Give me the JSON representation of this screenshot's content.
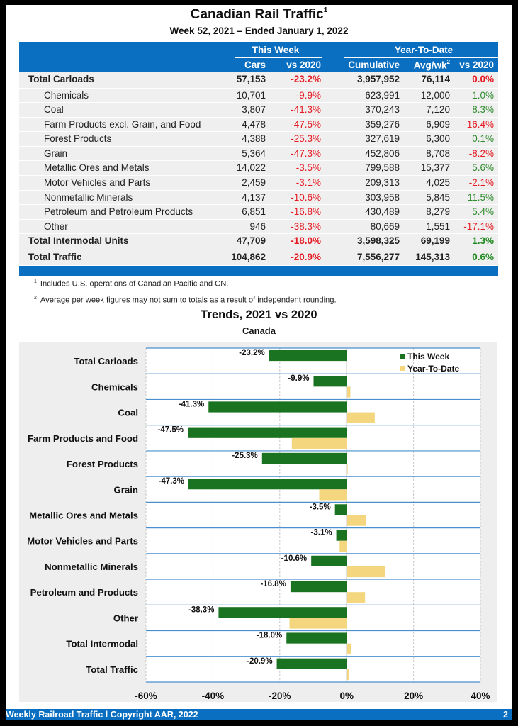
{
  "header": {
    "title": "Canadian Rail Traffic",
    "title_footnote": "1",
    "subtitle": "Week 52, 2021 – Ended January 1, 2022"
  },
  "table": {
    "group_this_week": "This Week",
    "group_ytd": "Year-To-Date",
    "columns": [
      "Cars",
      "vs 2020",
      "Cumulative",
      "Avg/wk",
      "vs 2020"
    ],
    "avg_footnote": "2",
    "rows": [
      {
        "label": "Total Carloads",
        "bold": true,
        "cars": "57,153",
        "vs_week": "-23.2%",
        "cumulative": "3,957,952",
        "avg_wk": "76,114",
        "vs_ytd": "0.0%",
        "ytd_sign": "neg"
      },
      {
        "label": "Chemicals",
        "bold": false,
        "cars": "10,701",
        "vs_week": "-9.9%",
        "cumulative": "623,991",
        "avg_wk": "12,000",
        "vs_ytd": "1.0%",
        "ytd_sign": "pos"
      },
      {
        "label": "Coal",
        "bold": false,
        "cars": "3,807",
        "vs_week": "-41.3%",
        "cumulative": "370,243",
        "avg_wk": "7,120",
        "vs_ytd": "8.3%",
        "ytd_sign": "pos"
      },
      {
        "label": "Farm Products excl. Grain, and Food",
        "bold": false,
        "cars": "4,478",
        "vs_week": "-47.5%",
        "cumulative": "359,276",
        "avg_wk": "6,909",
        "vs_ytd": "-16.4%",
        "ytd_sign": "neg"
      },
      {
        "label": "Forest Products",
        "bold": false,
        "cars": "4,388",
        "vs_week": "-25.3%",
        "cumulative": "327,619",
        "avg_wk": "6,300",
        "vs_ytd": "0.1%",
        "ytd_sign": "pos"
      },
      {
        "label": "Grain",
        "bold": false,
        "cars": "5,364",
        "vs_week": "-47.3%",
        "cumulative": "452,806",
        "avg_wk": "8,708",
        "vs_ytd": "-8.2%",
        "ytd_sign": "neg"
      },
      {
        "label": "Metallic Ores and Metals",
        "bold": false,
        "cars": "14,022",
        "vs_week": "-3.5%",
        "cumulative": "799,588",
        "avg_wk": "15,377",
        "vs_ytd": "5.6%",
        "ytd_sign": "pos"
      },
      {
        "label": "Motor Vehicles and Parts",
        "bold": false,
        "cars": "2,459",
        "vs_week": "-3.1%",
        "cumulative": "209,313",
        "avg_wk": "4,025",
        "vs_ytd": "-2.1%",
        "ytd_sign": "neg"
      },
      {
        "label": "Nonmetallic Minerals",
        "bold": false,
        "cars": "4,137",
        "vs_week": "-10.6%",
        "cumulative": "303,958",
        "avg_wk": "5,845",
        "vs_ytd": "11.5%",
        "ytd_sign": "pos"
      },
      {
        "label": "Petroleum and Petroleum Products",
        "bold": false,
        "cars": "6,851",
        "vs_week": "-16.8%",
        "cumulative": "430,489",
        "avg_wk": "8,279",
        "vs_ytd": "5.4%",
        "ytd_sign": "pos"
      },
      {
        "label": "Other",
        "bold": false,
        "cars": "946",
        "vs_week": "-38.3%",
        "cumulative": "80,669",
        "avg_wk": "1,551",
        "vs_ytd": "-17.1%",
        "ytd_sign": "neg"
      },
      {
        "label": "Total Intermodal Units",
        "bold": true,
        "cars": "47,709",
        "vs_week": "-18.0%",
        "cumulative": "3,598,325",
        "avg_wk": "69,199",
        "vs_ytd": "1.3%",
        "ytd_sign": "pos"
      },
      {
        "label": "Total Traffic",
        "bold": true,
        "cars": "104,862",
        "vs_week": "-20.9%",
        "cumulative": "7,556,277",
        "avg_wk": "145,313",
        "vs_ytd": "0.6%",
        "ytd_sign": "pos"
      }
    ]
  },
  "notes": [
    {
      "mark": "1",
      "text": "Includes U.S. operations of Canadian Pacific and CN."
    },
    {
      "mark": "2",
      "text": "Average per week figures may not sum to totals as a result of independent rounding."
    }
  ],
  "chart_data": {
    "type": "bar",
    "orientation": "horizontal",
    "title": "Trends, 2021 vs 2020",
    "subtitle": "Canada",
    "categories": [
      "Total Carloads",
      "Chemicals",
      "Coal",
      "Farm Products and Food",
      "Forest Products",
      "Grain",
      "Metallic Ores and Metals",
      "Motor Vehicles and Parts",
      "Nonmetallic Minerals",
      "Petroleum and Products",
      "Other",
      "Total Intermodal",
      "Total Traffic"
    ],
    "series": [
      {
        "name": "This Week",
        "color": "#1a7320",
        "values": [
          -23.2,
          -9.9,
          -41.3,
          -47.5,
          -25.3,
          -47.3,
          -3.5,
          -3.1,
          -10.6,
          -16.8,
          -38.3,
          -18.0,
          -20.9
        ],
        "labels": [
          "-23.2%",
          "-9.9%",
          "-41.3%",
          "-47.5%",
          "-25.3%",
          "-47.3%",
          "-3.5%",
          "-3.1%",
          "-10.6%",
          "-16.8%",
          "-38.3%",
          "-18.0%",
          "-20.9%"
        ]
      },
      {
        "name": "Year-To-Date",
        "color": "#f3d67e",
        "values": [
          0.0,
          1.0,
          8.3,
          -16.4,
          0.1,
          -8.2,
          5.6,
          -2.1,
          11.5,
          5.4,
          -17.1,
          1.3,
          0.6
        ]
      }
    ],
    "xlim": [
      -60,
      40
    ],
    "xticks": [
      -60,
      -40,
      -20,
      0,
      20,
      40
    ],
    "xtick_labels": [
      "-60%",
      "-40%",
      "-20%",
      "0%",
      "20%",
      "40%"
    ],
    "xlabel": "",
    "ylabel": "",
    "grid": true,
    "legend": "top-right"
  },
  "footer": {
    "text": "Weekly Railroad Traffic l Copyright AAR, 2022",
    "page": "2"
  }
}
